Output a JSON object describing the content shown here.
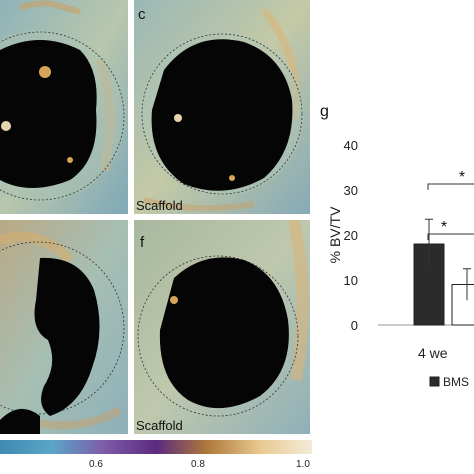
{
  "panels": [
    {
      "letter": "",
      "caption": ""
    },
    {
      "letter": "c",
      "caption": "Scaffold"
    },
    {
      "letter": "",
      "caption": ""
    },
    {
      "letter": "f",
      "caption": "Scaffold"
    }
  ],
  "colorbar": {
    "ticks": [
      "0.6",
      "0.8",
      "1.0"
    ],
    "colors": [
      "#3e8ab0",
      "#5aa5c8",
      "#7e5ca8",
      "#5b2a7e",
      "#b07a3a",
      "#e8c990",
      "#f4ecd8"
    ]
  },
  "chart_data": {
    "type": "bar",
    "panel_letter": "g",
    "ylabel": "% BV/TV",
    "ylim": [
      0,
      40
    ],
    "yticks": [
      0,
      10,
      20,
      30,
      40
    ],
    "categories": [
      "4 we"
    ],
    "series": [
      {
        "values": [
          18
        ],
        "error": [
          5.5
        ],
        "color": "#2b2b2b"
      },
      {
        "values": [
          9
        ],
        "error": [
          3.5
        ],
        "color": "#ffffff"
      }
    ],
    "significance": [
      "*",
      "*"
    ],
    "legend": [
      {
        "label": "BMS",
        "color": "#2b2b2b"
      }
    ]
  }
}
